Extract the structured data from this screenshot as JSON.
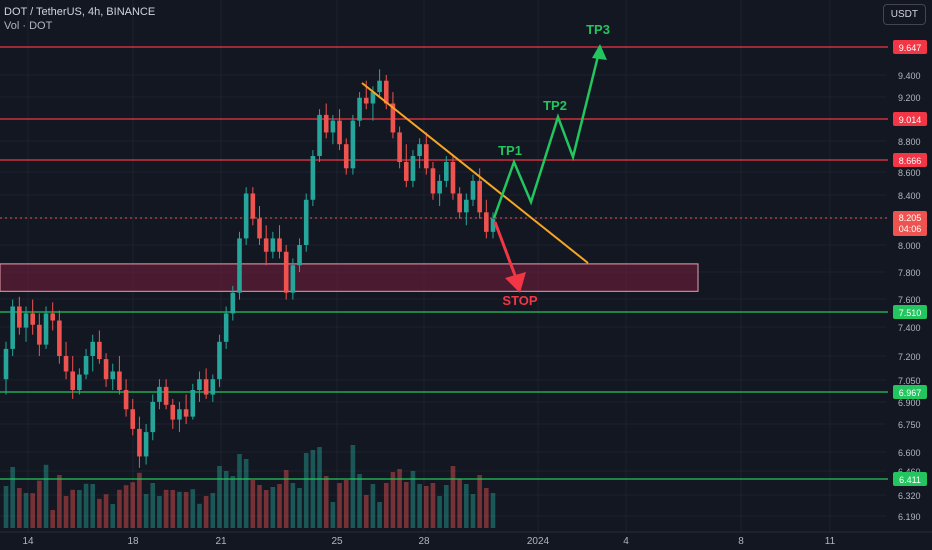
{
  "header": {
    "symbol_line": "DOT / TetherUS, 4h, BINANCE",
    "volume_label": "Vol · DOT",
    "currency_button": "USDT"
  },
  "colors": {
    "background": "#131722",
    "grid": "#1e222d",
    "up": "#26a69a",
    "down": "#ef5350",
    "resistance": "#f23645",
    "support": "#22c55e",
    "trendline": "#f5a623",
    "target_path": "#22c55e",
    "stop_arrow": "#f23645",
    "zone_fill": "rgba(120,30,60,0.55)"
  },
  "chart_data": {
    "type": "candlestick",
    "y_ticks": [
      "9.400",
      "9.200",
      "9.000",
      "8.800",
      "8.600",
      "8.400",
      "8.200",
      "8.000",
      "7.800",
      "7.600",
      "7.400",
      "7.200",
      "7.050",
      "6.900",
      "6.750",
      "6.600",
      "6.460",
      "6.320",
      "6.190"
    ],
    "x_ticks": [
      "14",
      "18",
      "21",
      "25",
      "28",
      "2024",
      "4",
      "8",
      "11"
    ],
    "ylim": [
      6.12,
      9.75
    ],
    "price_levels": [
      {
        "value": 9.647,
        "label": "9.647",
        "kind": "resistance"
      },
      {
        "value": 9.014,
        "label": "9.014",
        "kind": "resistance"
      },
      {
        "value": 8.666,
        "label": "8.666",
        "kind": "resistance"
      },
      {
        "value": 7.51,
        "label": "7.510",
        "kind": "support"
      },
      {
        "value": 6.967,
        "label": "6.967",
        "kind": "support"
      },
      {
        "value": 6.411,
        "label": "6.411",
        "kind": "support"
      }
    ],
    "current_price": {
      "label": "8.205",
      "countdown": "04:06",
      "value": 8.205
    },
    "zone": {
      "low": 7.66,
      "high": 7.86
    },
    "annotations": [
      {
        "text": "TP1",
        "color": "#22c55e"
      },
      {
        "text": "TP2",
        "color": "#22c55e"
      },
      {
        "text": "TP3",
        "color": "#22c55e"
      },
      {
        "text": "STOP",
        "color": "#f23645"
      }
    ],
    "candles": [
      [
        7.05,
        7.3,
        6.95,
        7.25
      ],
      [
        7.25,
        7.6,
        7.2,
        7.55
      ],
      [
        7.55,
        7.62,
        7.35,
        7.4
      ],
      [
        7.4,
        7.55,
        7.3,
        7.5
      ],
      [
        7.5,
        7.6,
        7.35,
        7.42
      ],
      [
        7.42,
        7.5,
        7.2,
        7.28
      ],
      [
        7.28,
        7.55,
        7.25,
        7.5
      ],
      [
        7.5,
        7.58,
        7.38,
        7.45
      ],
      [
        7.45,
        7.52,
        7.15,
        7.2
      ],
      [
        7.2,
        7.3,
        7.05,
        7.1
      ],
      [
        7.1,
        7.2,
        6.92,
        6.98
      ],
      [
        6.98,
        7.12,
        6.95,
        7.08
      ],
      [
        7.08,
        7.25,
        7.05,
        7.2
      ],
      [
        7.2,
        7.35,
        7.1,
        7.3
      ],
      [
        7.3,
        7.38,
        7.15,
        7.18
      ],
      [
        7.18,
        7.22,
        7.0,
        7.05
      ],
      [
        7.05,
        7.15,
        6.98,
        7.1
      ],
      [
        7.1,
        7.2,
        6.95,
        6.98
      ],
      [
        6.98,
        7.05,
        6.8,
        6.85
      ],
      [
        6.85,
        6.92,
        6.68,
        6.72
      ],
      [
        6.72,
        6.8,
        6.48,
        6.55
      ],
      [
        6.55,
        6.75,
        6.5,
        6.7
      ],
      [
        6.7,
        6.95,
        6.65,
        6.9
      ],
      [
        6.9,
        7.05,
        6.85,
        7.0
      ],
      [
        7.0,
        7.05,
        6.85,
        6.88
      ],
      [
        6.88,
        6.92,
        6.72,
        6.78
      ],
      [
        6.78,
        6.9,
        6.7,
        6.85
      ],
      [
        6.85,
        6.95,
        6.75,
        6.8
      ],
      [
        6.8,
        7.02,
        6.78,
        6.98
      ],
      [
        6.98,
        7.1,
        6.9,
        7.05
      ],
      [
        7.05,
        7.12,
        6.92,
        6.95
      ],
      [
        6.95,
        7.08,
        6.9,
        7.05
      ],
      [
        7.05,
        7.35,
        7.0,
        7.3
      ],
      [
        7.3,
        7.55,
        7.25,
        7.5
      ],
      [
        7.5,
        7.7,
        7.45,
        7.65
      ],
      [
        7.65,
        8.1,
        7.6,
        8.05
      ],
      [
        8.05,
        8.45,
        8.0,
        8.4
      ],
      [
        8.4,
        8.45,
        8.15,
        8.2
      ],
      [
        8.2,
        8.3,
        8.0,
        8.05
      ],
      [
        8.05,
        8.15,
        7.85,
        7.95
      ],
      [
        7.95,
        8.1,
        7.9,
        8.05
      ],
      [
        8.05,
        8.15,
        7.9,
        7.95
      ],
      [
        7.95,
        8.0,
        7.6,
        7.65
      ],
      [
        7.65,
        7.9,
        7.6,
        7.85
      ],
      [
        7.85,
        8.05,
        7.8,
        8.0
      ],
      [
        8.0,
        8.4,
        7.95,
        8.35
      ],
      [
        8.35,
        8.75,
        8.3,
        8.7
      ],
      [
        8.7,
        9.1,
        8.65,
        9.05
      ],
      [
        9.05,
        9.15,
        8.85,
        8.9
      ],
      [
        8.9,
        9.05,
        8.8,
        9.0
      ],
      [
        9.0,
        9.1,
        8.75,
        8.8
      ],
      [
        8.8,
        8.85,
        8.55,
        8.6
      ],
      [
        8.6,
        9.05,
        8.55,
        9.0
      ],
      [
        9.0,
        9.25,
        8.95,
        9.2
      ],
      [
        9.2,
        9.35,
        9.1,
        9.15
      ],
      [
        9.15,
        9.3,
        9.0,
        9.25
      ],
      [
        9.25,
        9.45,
        9.2,
        9.35
      ],
      [
        9.35,
        9.4,
        9.1,
        9.15
      ],
      [
        9.15,
        9.25,
        8.85,
        8.9
      ],
      [
        8.9,
        8.95,
        8.6,
        8.65
      ],
      [
        8.65,
        8.8,
        8.45,
        8.5
      ],
      [
        8.5,
        8.75,
        8.45,
        8.7
      ],
      [
        8.7,
        8.85,
        8.6,
        8.8
      ],
      [
        8.8,
        8.9,
        8.55,
        8.6
      ],
      [
        8.6,
        8.65,
        8.35,
        8.4
      ],
      [
        8.4,
        8.55,
        8.3,
        8.5
      ],
      [
        8.5,
        8.7,
        8.45,
        8.65
      ],
      [
        8.65,
        8.7,
        8.35,
        8.4
      ],
      [
        8.4,
        8.45,
        8.2,
        8.25
      ],
      [
        8.25,
        8.4,
        8.15,
        8.35
      ],
      [
        8.35,
        8.55,
        8.3,
        8.5
      ],
      [
        8.5,
        8.6,
        8.2,
        8.25
      ],
      [
        8.25,
        8.35,
        8.05,
        8.1
      ],
      [
        8.1,
        8.25,
        8.05,
        8.2
      ]
    ]
  }
}
